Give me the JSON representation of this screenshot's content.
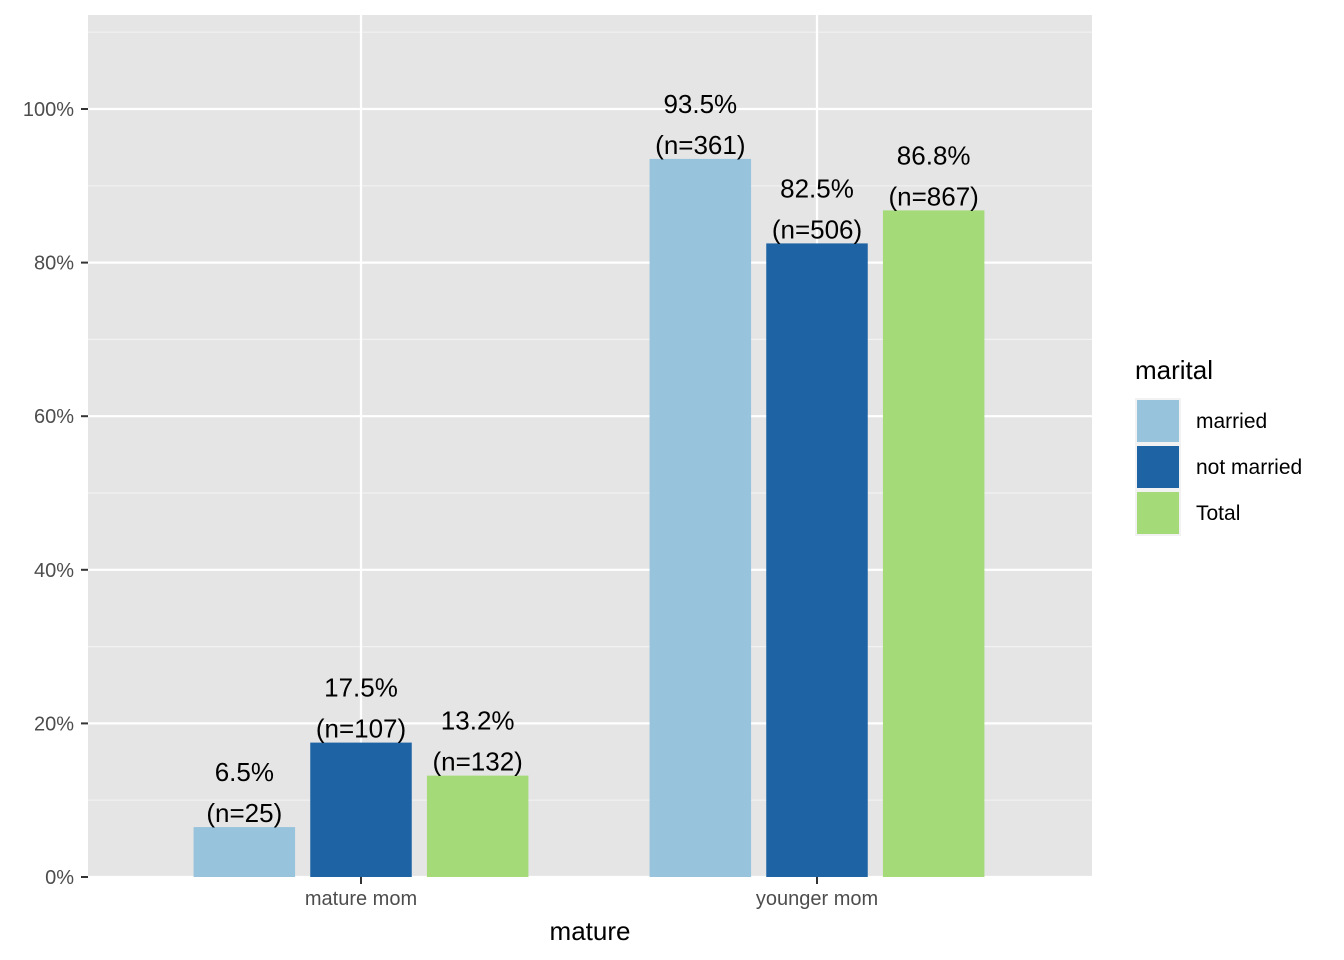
{
  "chart_data": {
    "type": "bar",
    "xlabel": "mature",
    "ylabel": "",
    "ylim": [
      0,
      1.1
    ],
    "y_ticks": [
      0,
      0.2,
      0.4,
      0.6,
      0.8,
      1.0
    ],
    "y_tick_labels": [
      "0%",
      "20%",
      "40%",
      "60%",
      "80%",
      "100%"
    ],
    "categories": [
      "mature mom",
      "younger mom"
    ],
    "legend": {
      "title": "marital",
      "position": "right"
    },
    "grid": true,
    "series": [
      {
        "name": "married",
        "color": "#97c4dc",
        "values": [
          0.065,
          0.935
        ],
        "labels": [
          "6.5%\n(n=25)",
          "93.5%\n(n=361)"
        ]
      },
      {
        "name": "not married",
        "color": "#1e63a4",
        "values": [
          0.175,
          0.825
        ],
        "labels": [
          "17.5%\n(n=107)",
          "82.5%\n(n=506)"
        ]
      },
      {
        "name": "Total",
        "color": "#a5da79",
        "values": [
          0.132,
          0.868
        ],
        "labels": [
          "13.2%\n(n=132)",
          "86.8%\n(n=867)"
        ]
      }
    ]
  }
}
